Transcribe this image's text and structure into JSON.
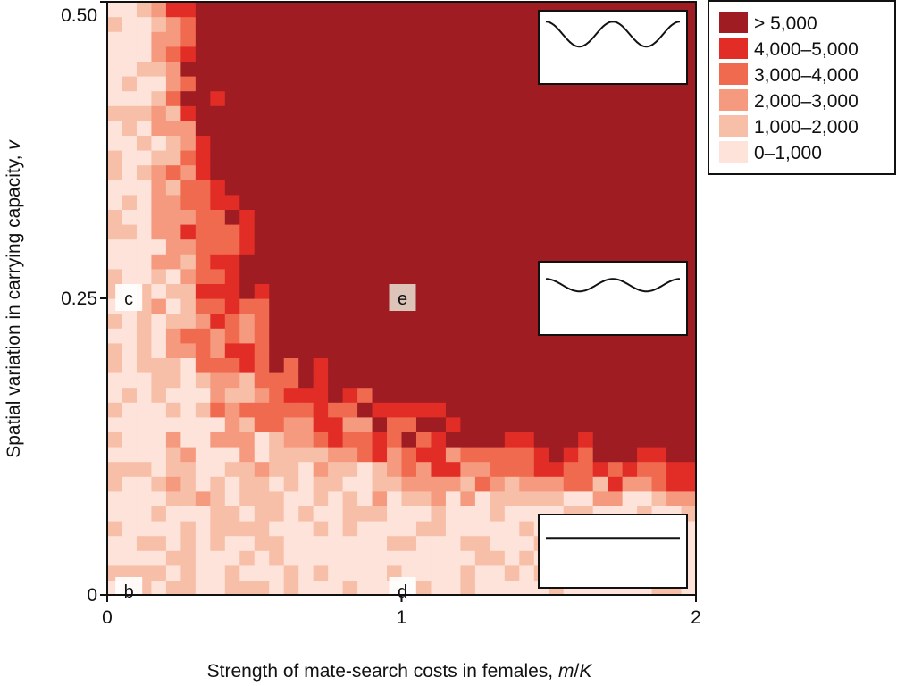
{
  "chart_data": {
    "type": "heatmap",
    "xlabel": "Strength of mate-search costs in females, m/K",
    "ylabel": "Spatial variation in carrying capacity, v",
    "x_ticks": [
      {
        "value": 0,
        "label": "0"
      },
      {
        "value": 1,
        "label": "1"
      },
      {
        "value": 2,
        "label": "2"
      }
    ],
    "y_ticks": [
      {
        "value": 0,
        "label": "0"
      },
      {
        "value": 0.25,
        "label": "0.25"
      },
      {
        "value": 0.5,
        "label": "0.50"
      }
    ],
    "xlim": [
      0,
      2
    ],
    "ylim": [
      0,
      0.5
    ],
    "grid": [
      40,
      40
    ],
    "legend": {
      "placement": "right",
      "entries": [
        {
          "label": "> 5,000",
          "color": "#9e1c22"
        },
        {
          "label": "4,000–5,000",
          "color": "#e22d27"
        },
        {
          "label": "3,000–4,000",
          "color": "#f06a4f"
        },
        {
          "label": "2,000–3,000",
          "color": "#f59a7e"
        },
        {
          "label": "1,000–2,000",
          "color": "#f8bfa8"
        },
        {
          "label": "0–1,000",
          "color": "#fde3da"
        }
      ]
    },
    "boundary_levels": [
      0.5,
      1.5,
      2.5,
      3.5,
      4.5
    ],
    "boundary_noise": 0.045,
    "annotations": [
      {
        "label": "b",
        "x": 0.04,
        "y": 0.003
      },
      {
        "label": "c",
        "x": 0.04,
        "y": 0.25
      },
      {
        "label": "d",
        "x": 1.0,
        "y": 0.003
      },
      {
        "label": "e",
        "x": 1.0,
        "y": 0.25
      }
    ],
    "insets": [
      {
        "name": "high-variation",
        "amplitude": 1.0,
        "panel_y": 0.5
      },
      {
        "name": "medium-variation",
        "amplitude": 0.5,
        "panel_y": 0.25
      },
      {
        "name": "no-variation",
        "amplitude": 0.0,
        "panel_y": 0.0
      }
    ]
  }
}
